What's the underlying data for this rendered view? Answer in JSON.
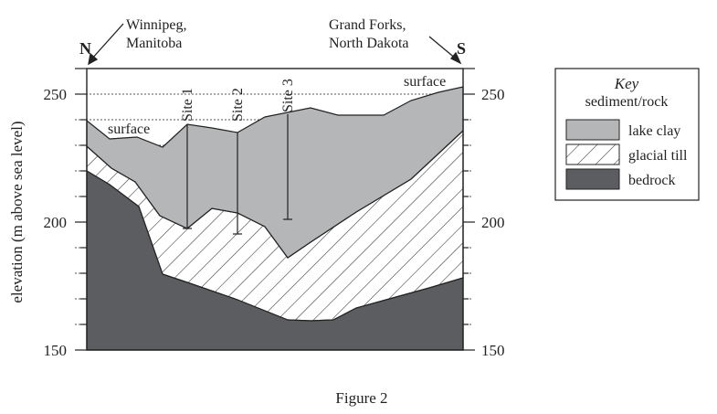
{
  "figure": {
    "caption": "Figure 2",
    "y_axis_label": "elevation (m above sea level)",
    "y_ticks": [
      150,
      200,
      250
    ],
    "y_range": [
      150,
      260
    ],
    "compass": {
      "left": "N",
      "right": "S"
    },
    "cities": {
      "left_line1": "Winnipeg,",
      "left_line2": "Manitoba",
      "right_line1": "Grand Forks,",
      "right_line2": "North Dakota"
    },
    "surface_labels": [
      "surface",
      "surface"
    ],
    "sites": [
      "Site 1",
      "Site 2",
      "Site 3"
    ],
    "colors": {
      "lake_clay": "#b4b6b8",
      "glacial_till": "#ffffff",
      "bedrock": "#5b5d60",
      "line": "#222222"
    }
  },
  "key": {
    "title": "Key",
    "subtitle": "sediment/rock",
    "items": [
      {
        "label": "lake clay",
        "swatch": "lake-clay"
      },
      {
        "label": "glacial till",
        "swatch": "glacial-till"
      },
      {
        "label": "bedrock",
        "swatch": "bedrock"
      }
    ]
  }
}
